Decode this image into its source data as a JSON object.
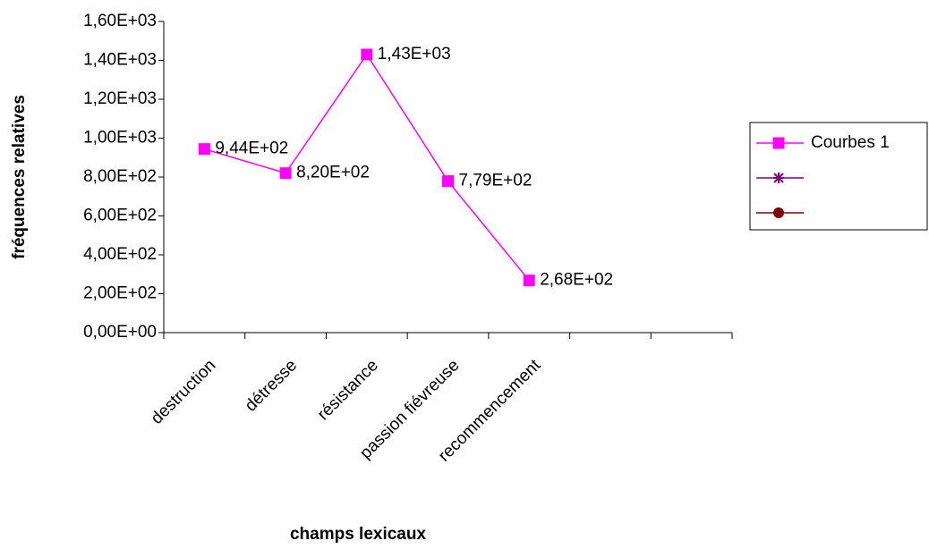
{
  "chart_data": {
    "type": "line",
    "xlabel": "champs lexicaux",
    "ylabel": "fréquences relatives",
    "categories": [
      "destruction",
      "détresse",
      "résistance",
      "passion fiévreuse",
      "recommencement",
      null,
      null
    ],
    "series": [
      {
        "name": "Courbes 1",
        "color": "#ff00ff",
        "marker": "square",
        "values": [
          944,
          820,
          1430,
          779,
          268,
          null,
          null
        ],
        "value_labels": [
          "9,44E+02",
          "8,20E+02",
          "1,43E+03",
          "7,79E+02",
          "2,68E+02",
          null,
          null
        ]
      },
      {
        "color": "#800080",
        "marker": "star",
        "values": [
          null,
          null,
          null,
          null,
          null,
          null,
          null
        ]
      },
      {
        "color": "#800000",
        "marker": "circle",
        "values": [
          null,
          null,
          null,
          null,
          null,
          null,
          null
        ]
      }
    ],
    "ylim": [
      0,
      1600
    ],
    "yticks": [
      {
        "value": 0,
        "label": "0,00E+00"
      },
      {
        "value": 200,
        "label": "2,00E+02"
      },
      {
        "value": 400,
        "label": "4,00E+02"
      },
      {
        "value": 600,
        "label": "6,00E+02"
      },
      {
        "value": 800,
        "label": "8,00E+02"
      },
      {
        "value": 1000,
        "label": "1,00E+03"
      },
      {
        "value": 1200,
        "label": "1,20E+03"
      },
      {
        "value": 1400,
        "label": "1,40E+03"
      },
      {
        "value": 1600,
        "label": "1,60E+03"
      }
    ],
    "grid": false,
    "legend": "right"
  }
}
